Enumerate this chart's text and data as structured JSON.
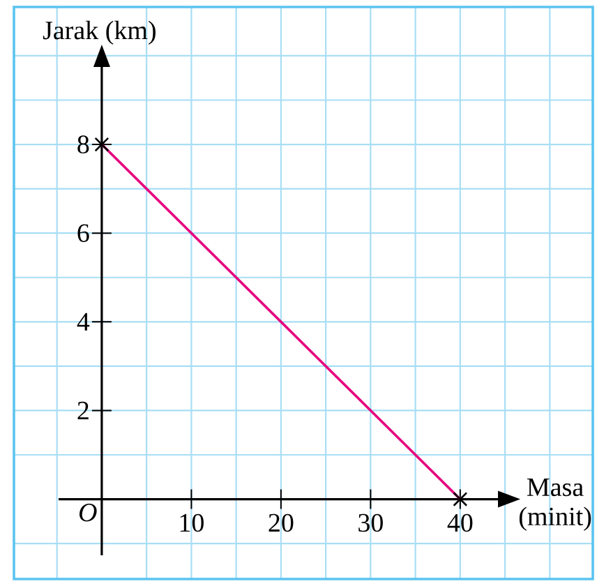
{
  "chart_data": {
    "type": "line",
    "xlabel": "Masa (minit)",
    "ylabel": "Jarak (km)",
    "annotations": [
      "O"
    ],
    "x": [
      0,
      40
    ],
    "series": [
      {
        "color": "#e6007e",
        "values": [
          8,
          0
        ]
      }
    ],
    "marker": "cross",
    "line_style": "solid",
    "grid": true,
    "xlim": [
      -9.8,
      54.8
    ],
    "ylim": [
      -1.8,
      11.1
    ],
    "xticks": [
      {
        "value": -5,
        "label": null
      },
      {
        "value": 0,
        "label": null
      },
      {
        "value": 5,
        "label": null
      },
      10,
      {
        "value": 15,
        "label": null
      },
      20,
      {
        "value": 25,
        "label": null
      },
      30,
      {
        "value": 35,
        "label": null
      },
      40,
      {
        "value": 45,
        "label": null
      },
      {
        "value": 50,
        "label": null
      }
    ],
    "yticks": [
      {
        "value": -1,
        "label": null
      },
      {
        "value": 0,
        "label": null
      },
      {
        "value": 1,
        "label": null
      },
      2,
      {
        "value": 3,
        "label": null
      },
      4,
      {
        "value": 5,
        "label": null
      },
      6,
      {
        "value": 7,
        "label": null
      },
      8,
      {
        "value": 9,
        "label": null
      },
      {
        "value": 10,
        "label": null
      }
    ]
  }
}
